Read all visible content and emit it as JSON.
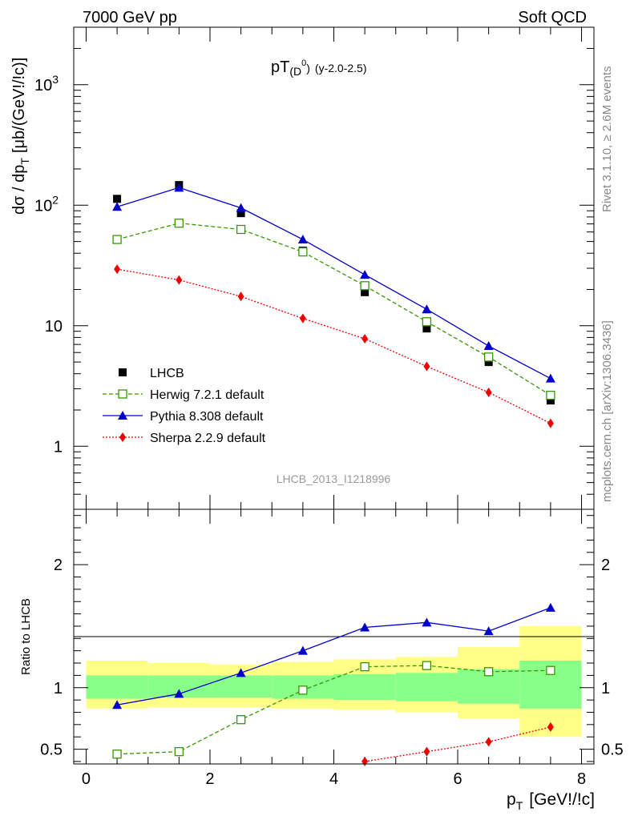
{
  "header": {
    "left": "7000 GeV pp",
    "right": "Soft QCD"
  },
  "side_labels": {
    "top": "Rivet 3.1.10, ≥ 2.6M events",
    "bottom": "mcplots.cern.ch [arXiv:1306.3436]"
  },
  "chart_data": [
    {
      "type": "scatter",
      "title_main": "pT",
      "title_sub": "(D",
      "title_sup": "0",
      "title_close": ")",
      "title_rest": "(y-2.0-2.5)",
      "watermark": "LHCB_2013_I1218996",
      "ylabel": "dσ / dp",
      "ylabel_sub": "T",
      "ylabel_unit": "[μb/(GeV!/!c)]",
      "yscale": "log",
      "xlim": [
        -0.2,
        8.2
      ],
      "ylim": [
        0.3,
        3000
      ],
      "y_ticks": [
        {
          "v": 1,
          "label": "1"
        },
        {
          "v": 10,
          "label": "10"
        },
        {
          "v": 100,
          "label": "10",
          "exp": "2"
        },
        {
          "v": 1000,
          "label": "10",
          "exp": "3"
        }
      ],
      "legend_position": "center-left",
      "series": [
        {
          "name": "LHCB",
          "color": "#000000",
          "marker": "square",
          "line": "none",
          "x": [
            0.5,
            1.5,
            2.5,
            3.5,
            4.5,
            5.5,
            6.5,
            7.5
          ],
          "y": [
            113,
            147,
            86,
            42,
            19,
            9.5,
            5.0,
            2.4
          ]
        },
        {
          "name": "Herwig 7.2.1 default",
          "color": "#339900",
          "marker": "open-square",
          "line": "dashed",
          "x": [
            0.5,
            1.5,
            2.5,
            3.5,
            4.5,
            5.5,
            6.5,
            7.5
          ],
          "y": [
            52,
            71,
            63,
            41,
            21.5,
            10.8,
            5.5,
            2.65
          ]
        },
        {
          "name": "Pythia 8.308 default",
          "color": "#0000cc",
          "marker": "triangle",
          "line": "solid",
          "x": [
            0.5,
            1.5,
            2.5,
            3.5,
            4.5,
            5.5,
            6.5,
            7.5
          ],
          "y": [
            97,
            140,
            95,
            52,
            26.5,
            13.7,
            6.8,
            3.65
          ]
        },
        {
          "name": "Sherpa 2.2.9 default",
          "color": "#ee0000",
          "marker": "diamond",
          "line": "dotted",
          "x": [
            0.5,
            1.5,
            2.5,
            3.5,
            4.5,
            5.5,
            6.5,
            7.5
          ],
          "y": [
            29.5,
            24,
            17.5,
            11.5,
            7.8,
            4.6,
            2.8,
            1.55
          ]
        }
      ]
    },
    {
      "type": "scatter",
      "ylabel": "Ratio to LHCB",
      "xlabel": "p",
      "xlabel_sub": "T",
      "xlabel_unit": "[GeV!/!c]",
      "xlim": [
        -0.2,
        8.2
      ],
      "ylim": [
        0.38,
        2.45
      ],
      "y_ticks": [
        {
          "v": 0.5,
          "label": "0.5"
        },
        {
          "v": 1,
          "label": "1"
        },
        {
          "v": 2,
          "label": "2"
        }
      ],
      "x_ticks": [
        {
          "v": 0,
          "label": "0"
        },
        {
          "v": 2,
          "label": "2"
        },
        {
          "v": 4,
          "label": "4"
        },
        {
          "v": 6,
          "label": "6"
        },
        {
          "v": 8,
          "label": "8"
        }
      ],
      "bands": {
        "outer_color": "#ffff88",
        "inner_color": "#88ff88",
        "bins": [
          {
            "lo": 0,
            "hi": 1,
            "outer": [
              0.83,
              1.22
            ],
            "inner": [
              0.91,
              1.1
            ]
          },
          {
            "lo": 1,
            "hi": 2,
            "outer": [
              0.84,
              1.2
            ],
            "inner": [
              0.92,
              1.1
            ]
          },
          {
            "lo": 2,
            "hi": 3,
            "outer": [
              0.84,
              1.19
            ],
            "inner": [
              0.92,
              1.1
            ]
          },
          {
            "lo": 3,
            "hi": 4,
            "outer": [
              0.83,
              1.21
            ],
            "inner": [
              0.91,
              1.1
            ]
          },
          {
            "lo": 4,
            "hi": 5,
            "outer": [
              0.82,
              1.23
            ],
            "inner": [
              0.9,
              1.11
            ]
          },
          {
            "lo": 5,
            "hi": 6,
            "outer": [
              0.8,
              1.25
            ],
            "inner": [
              0.89,
              1.12
            ]
          },
          {
            "lo": 6,
            "hi": 7,
            "outer": [
              0.75,
              1.33
            ],
            "inner": [
              0.87,
              1.15
            ]
          },
          {
            "lo": 7,
            "hi": 8,
            "outer": [
              0.6,
              1.5
            ],
            "inner": [
              0.83,
              1.22
            ]
          }
        ]
      },
      "series": [
        {
          "name": "Herwig 7.2.1 default",
          "color": "#339900",
          "marker": "open-square",
          "line": "dashed",
          "x": [
            0.5,
            1.5,
            2.5,
            3.5,
            4.5,
            5.5,
            6.5,
            7.5
          ],
          "y": [
            0.46,
            0.48,
            0.74,
            0.98,
            1.17,
            1.18,
            1.13,
            1.14
          ]
        },
        {
          "name": "Pythia 8.308 default",
          "color": "#0000cc",
          "marker": "triangle",
          "line": "solid",
          "x": [
            0.5,
            1.5,
            2.5,
            3.5,
            4.5,
            5.5,
            6.5,
            7.5
          ],
          "y": [
            0.86,
            0.95,
            1.12,
            1.3,
            1.49,
            1.53,
            1.46,
            1.65
          ]
        },
        {
          "name": "Sherpa 2.2.9 default",
          "color": "#ee0000",
          "marker": "diamond",
          "line": "dotted",
          "x": [
            4.5,
            5.5,
            6.5,
            7.5
          ],
          "y": [
            0.4,
            0.48,
            0.56,
            0.68
          ]
        }
      ]
    }
  ]
}
